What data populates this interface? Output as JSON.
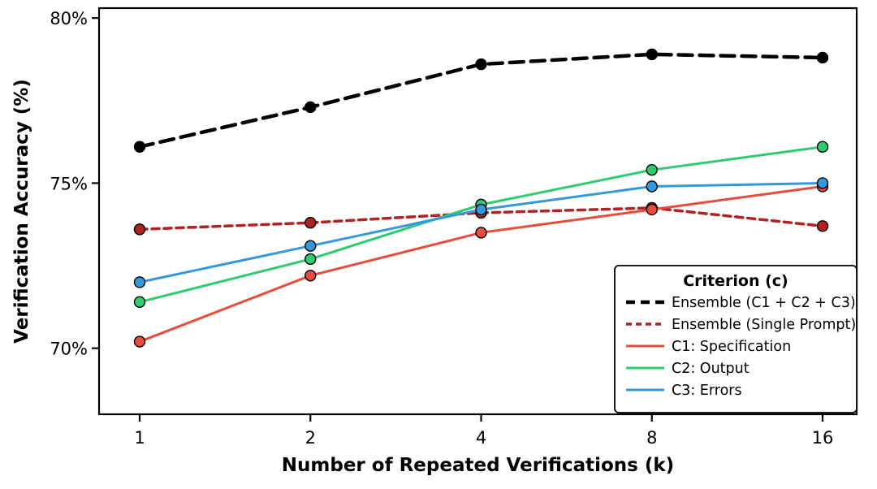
{
  "chart_data": {
    "type": "line",
    "title": "",
    "xlabel": "Number of Repeated Verifications (k)",
    "ylabel": "Verification Accuracy (%)",
    "x_categories": [
      "1",
      "2",
      "4",
      "8",
      "16"
    ],
    "x_scale": "log2-category",
    "yticks": [
      {
        "value": 70,
        "label": "70%"
      },
      {
        "value": 75,
        "label": "75%"
      },
      {
        "value": 80,
        "label": "80%"
      }
    ],
    "ylim": [
      68.0,
      80.3
    ],
    "grid": "off",
    "legend": {
      "title": "Criterion (c)",
      "position": "lower right"
    },
    "series": [
      {
        "name": "Ensemble (C1 + C2 + C3)",
        "color": "#000000",
        "style": "dashed",
        "line_width": 4.5,
        "dash_pattern": "17 9",
        "legend_dash": "11 7",
        "values": [
          76.1,
          77.3,
          78.6,
          78.9,
          78.8
        ]
      },
      {
        "name": "Ensemble (Single Prompt)",
        "color": "#b22222",
        "style": "dashed",
        "line_width": 3.5,
        "dash_pattern": "9 6",
        "legend_dash": "7 5",
        "values": [
          73.6,
          73.8,
          74.1,
          74.25,
          73.7
        ]
      },
      {
        "name": "C1: Specification",
        "color": "#e74c3c",
        "style": "solid",
        "line_width": 3,
        "dash_pattern": "",
        "legend_dash": "",
        "values": [
          70.2,
          72.2,
          73.5,
          74.2,
          74.9
        ]
      },
      {
        "name": "C2: Output",
        "color": "#2ecc71",
        "style": "solid",
        "line_width": 3,
        "dash_pattern": "",
        "legend_dash": "",
        "values": [
          71.4,
          72.7,
          74.35,
          75.4,
          76.1
        ]
      },
      {
        "name": "C3: Errors",
        "color": "#3498db",
        "style": "solid",
        "line_width": 3,
        "dash_pattern": "",
        "legend_dash": "",
        "values": [
          72.0,
          73.1,
          74.2,
          74.9,
          75.0
        ]
      }
    ]
  }
}
